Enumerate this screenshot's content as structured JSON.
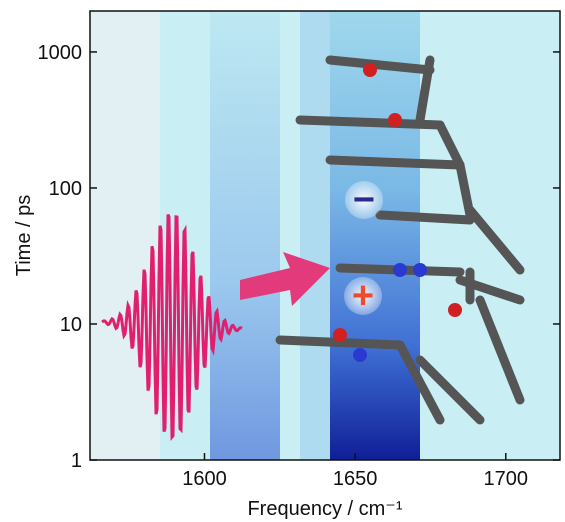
{
  "chart_data": {
    "type": "contour",
    "x_label": "Frequency / cm⁻¹",
    "y_label": "Time / ps",
    "xlim": [
      1562,
      1718
    ],
    "xticks": [
      1600,
      1650,
      1700
    ],
    "ylim": [
      1,
      2000
    ],
    "yticks": [
      1,
      10,
      100,
      1000
    ],
    "yscale": "log",
    "annotations": [
      {
        "text": "−",
        "color": "#2a2a8a"
      },
      {
        "text": "+",
        "color": "#f04a2a"
      }
    ]
  }
}
